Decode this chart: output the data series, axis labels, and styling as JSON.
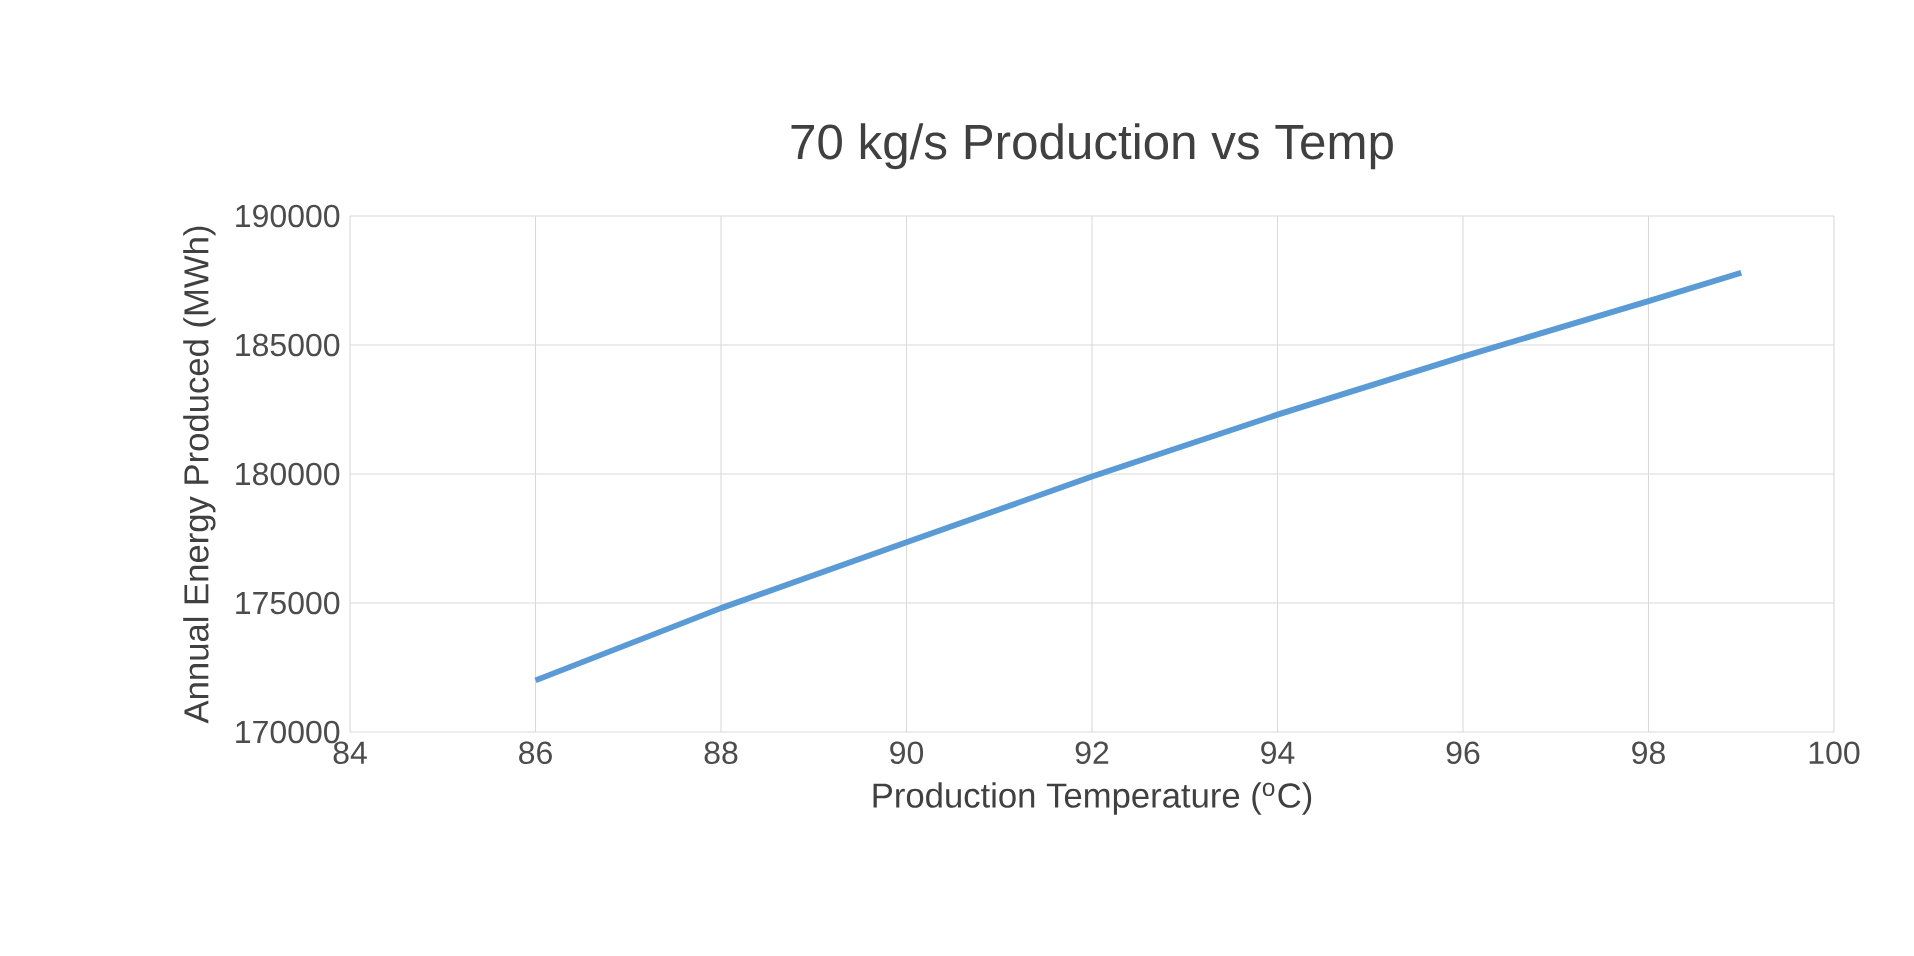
{
  "chart_data": {
    "type": "line",
    "title": "70 kg/s Production vs Temp",
    "xlabel": "Production Temperature ($^{o}$C)",
    "ylabel": "Annual Energy Produced (MWh)",
    "x": [
      86,
      88,
      90,
      92,
      94,
      96,
      98,
      99
    ],
    "series": [
      {
        "color": "#5b9bd5",
        "values": [
          172000,
          174800,
          177350,
          179900,
          182300,
          184550,
          186700,
          187800
        ]
      }
    ],
    "xlim": [
      84,
      100
    ],
    "xticks": [
      84,
      86,
      88,
      90,
      92,
      94,
      96,
      98,
      100
    ],
    "ylim": [
      170000,
      190000
    ],
    "yticks": [
      170000,
      175000,
      180000,
      185000,
      190000
    ],
    "grid": true,
    "marker": "none",
    "line_style": "solid"
  }
}
